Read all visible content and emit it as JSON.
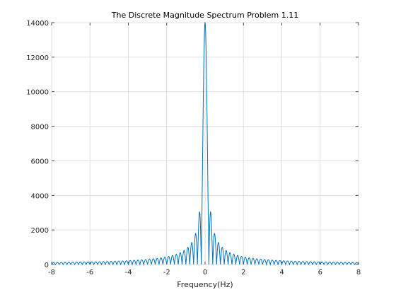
{
  "chart_data": {
    "type": "line",
    "title": "The Discrete Magnitude Spectrum Problem 1.11",
    "xlabel": "Frequency(Hz)",
    "ylabel": "",
    "xlim": [
      -8,
      8
    ],
    "ylim": [
      0,
      14000
    ],
    "xticks": [
      -8,
      -6,
      -4,
      -2,
      0,
      2,
      4,
      6,
      8
    ],
    "yticks": [
      0,
      2000,
      4000,
      6000,
      8000,
      10000,
      12000,
      14000
    ],
    "xtick_labels": [
      "-8",
      "-6",
      "-4",
      "-2",
      "0",
      "2",
      "4",
      "6",
      "8"
    ],
    "ytick_labels": [
      "0",
      "2000",
      "4000",
      "6000",
      "8000",
      "10000",
      "12000",
      "14000"
    ],
    "grid": true,
    "line_color": "#0072bd",
    "series": [
      {
        "peak_frequency": 0,
        "peak_magnitude": 14000,
        "null_spacing_hz": 0.2,
        "x": [
          -8,
          -6,
          -4,
          -3,
          -2,
          -1.5,
          -1.0,
          -0.8,
          -0.7,
          -0.5,
          -0.3,
          -0.2,
          -0.1,
          0,
          0.1,
          0.2,
          0.3,
          0.5,
          0.7,
          0.8,
          1.0,
          1.5,
          2,
          3,
          4,
          6,
          8
        ],
        "y": [
          0,
          10,
          30,
          60,
          140,
          330,
          700,
          850,
          0,
          1300,
          2050,
          0,
          7000,
          14000,
          7000,
          0,
          2050,
          1300,
          0,
          850,
          700,
          330,
          140,
          60,
          30,
          10,
          0
        ]
      }
    ]
  }
}
